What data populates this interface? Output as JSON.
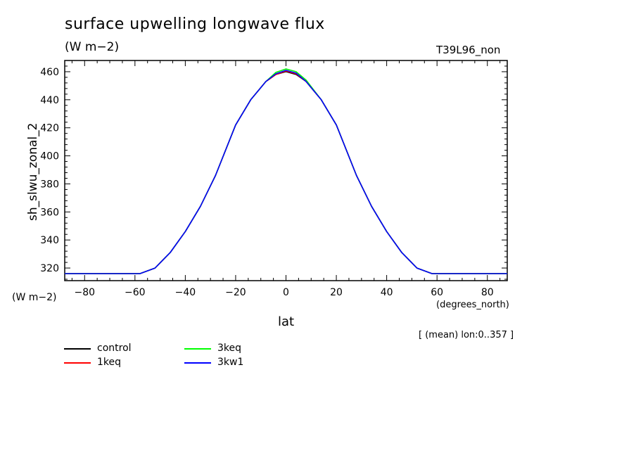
{
  "title": "surface upwelling longwave flux",
  "units": "(W m−2)",
  "run_id": "T39L96_non",
  "footer": "[ (mean) lon:0..357 ]",
  "chart_data": {
    "type": "line",
    "ylabel": "sh_slwu_zonal_2",
    "yunits": "(W m−2)",
    "xlabel": "lat",
    "xunits": "(degrees_north)",
    "xlim": [
      -87.9,
      87.9
    ],
    "ylim": [
      311,
      468
    ],
    "xticks": [
      -80,
      -60,
      -40,
      -20,
      0,
      20,
      40,
      60,
      80
    ],
    "yticks": [
      320,
      340,
      360,
      380,
      400,
      420,
      440,
      460
    ],
    "series": [
      {
        "name": "control",
        "color": "#000000",
        "x": [
          -87.9,
          -70,
          -58,
          -52,
          -46,
          -40,
          -34,
          -28,
          -20,
          -14,
          -8,
          -4,
          0,
          4,
          8,
          14,
          20,
          28,
          34,
          40,
          46,
          52,
          58,
          70,
          87.9
        ],
        "y": [
          316,
          316,
          316,
          320,
          331,
          346,
          364,
          386,
          422,
          440,
          453,
          458,
          460,
          458,
          453,
          440,
          422,
          386,
          364,
          346,
          331,
          320,
          316,
          316,
          316
        ]
      },
      {
        "name": "1keq",
        "color": "#ff0000",
        "x": [
          -87.9,
          -70,
          -58,
          -52,
          -46,
          -40,
          -34,
          -28,
          -20,
          -14,
          -8,
          -4,
          0,
          4,
          8,
          14,
          20,
          28,
          34,
          40,
          46,
          52,
          58,
          70,
          87.9
        ],
        "y": [
          316,
          316,
          316,
          320,
          331,
          346,
          364,
          386,
          422,
          440,
          453,
          458,
          460.5,
          458.5,
          453,
          440,
          422,
          386,
          364,
          346,
          331,
          320,
          316,
          316,
          316
        ]
      },
      {
        "name": "3keq",
        "color": "#00ff00",
        "x": [
          -87.9,
          -70,
          -58,
          -52,
          -46,
          -40,
          -34,
          -28,
          -20,
          -14,
          -8,
          -4,
          0,
          4,
          8,
          14,
          20,
          28,
          34,
          40,
          46,
          52,
          58,
          70,
          87.9
        ],
        "y": [
          316,
          316,
          316,
          320,
          331,
          346,
          364,
          386,
          422,
          440,
          453,
          459.5,
          462,
          460,
          454,
          440,
          422,
          386,
          364,
          346,
          331,
          320,
          316,
          316,
          316
        ]
      },
      {
        "name": "3kw1",
        "color": "#0000ff",
        "x": [
          -87.9,
          -70,
          -58,
          -52,
          -46,
          -40,
          -34,
          -28,
          -20,
          -14,
          -8,
          -4,
          0,
          4,
          8,
          14,
          20,
          28,
          34,
          40,
          46,
          52,
          58,
          70,
          87.9
        ],
        "y": [
          316,
          316,
          316,
          320,
          331,
          346,
          364,
          386,
          422,
          440,
          453,
          458.5,
          461,
          459,
          453,
          440,
          422,
          386,
          364,
          346,
          331,
          320,
          316,
          316,
          316
        ]
      }
    ]
  }
}
